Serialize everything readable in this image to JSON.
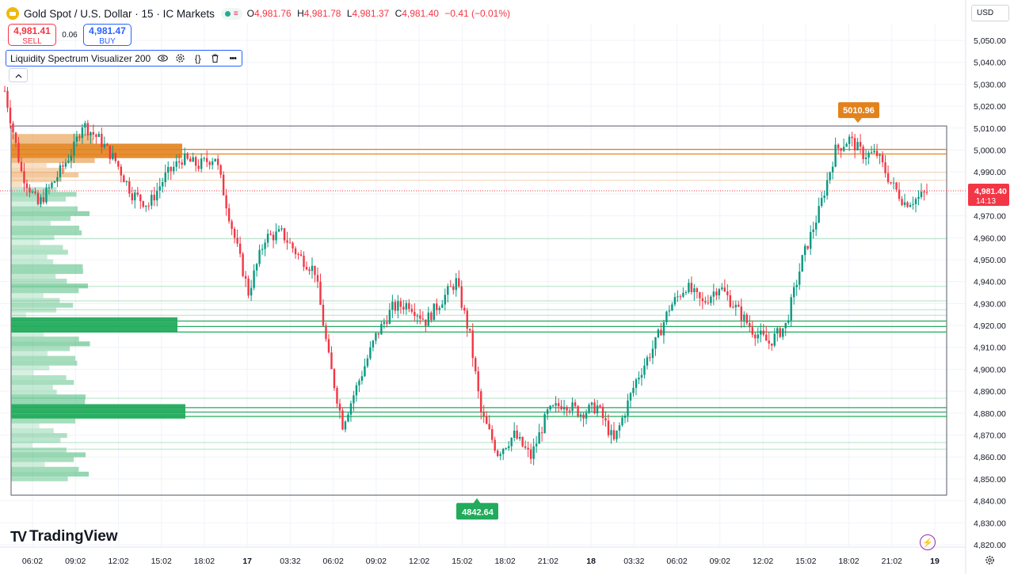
{
  "header": {
    "symbol": "Gold Spot / U.S. Dollar · 15 · IC Markets",
    "o_label": "O",
    "o": "4,981.76",
    "h_label": "H",
    "h": "4,981.78",
    "l_label": "L",
    "l": "4,981.37",
    "c_label": "C",
    "c": "4,981.40",
    "change": "−0.41 (−0.01%)"
  },
  "trade": {
    "sell_price": "4,981.41",
    "sell_label": "SELL",
    "spread": "0.06",
    "buy_price": "4,981.47",
    "buy_label": "BUY"
  },
  "indicator": {
    "name": "Liquidity Spectrum Visualizer",
    "param": "200"
  },
  "currency": "USD",
  "brand": "TradingView",
  "chart_data": {
    "type": "candlestick",
    "title": "",
    "y_ticks": [
      5050,
      5040,
      5030,
      5020,
      5010,
      5000,
      4990,
      4980,
      4970,
      4960,
      4950,
      4940,
      4930,
      4920,
      4910,
      4900,
      4890,
      4880,
      4870,
      4860,
      4850,
      4840,
      4830,
      4820
    ],
    "y_tick_labels": [
      "5,050.00",
      "5,040.00",
      "5,030.00",
      "5,020.00",
      "5,010.00",
      "5,000.00",
      "4,990.00",
      "4,980.00",
      "4,970.00",
      "4,960.00",
      "4,950.00",
      "4,940.00",
      "4,930.00",
      "4,920.00",
      "4,910.00",
      "4,900.00",
      "4,890.00",
      "4,880.00",
      "4,870.00",
      "4,860.00",
      "4,850.00",
      "4,840.00",
      "4,830.00",
      "4,820.00"
    ],
    "x_tick_labels": [
      "06:02",
      "09:02",
      "12:02",
      "15:02",
      "18:02",
      "17",
      "03:32",
      "06:02",
      "09:02",
      "12:02",
      "15:02",
      "18:02",
      "21:02",
      "18",
      "03:32",
      "06:02",
      "09:02",
      "12:02",
      "15:02",
      "18:02",
      "21:02",
      "19"
    ],
    "ylim": [
      4815,
      5055
    ],
    "last_price": "4,981.40",
    "countdown": "14:13",
    "high_marker": "5010.96",
    "low_marker": "4842.64",
    "range_box": [
      4842.64,
      5010.96
    ],
    "resistance_levels": [
      5000.3,
      4998.2
    ],
    "support_levels": [
      4922.0,
      4919.5,
      4917.0,
      4882.5,
      4880.5,
      4878.5
    ],
    "colors": {
      "up": "#089981",
      "down": "#f23645",
      "resist": "#e2821c",
      "support": "#22ab5c"
    },
    "path_anchors": [
      [
        0,
        5027
      ],
      [
        6,
        4990
      ],
      [
        12,
        4975
      ],
      [
        18,
        4986
      ],
      [
        25,
        5001
      ],
      [
        28,
        5012
      ],
      [
        34,
        5005
      ],
      [
        40,
        4995
      ],
      [
        46,
        4980
      ],
      [
        52,
        4975
      ],
      [
        58,
        4988
      ],
      [
        64,
        4996
      ],
      [
        70,
        4993
      ],
      [
        76,
        4997
      ],
      [
        82,
        4965
      ],
      [
        88,
        4935
      ],
      [
        94,
        4960
      ],
      [
        100,
        4962
      ],
      [
        106,
        4952
      ],
      [
        112,
        4945
      ],
      [
        117,
        4905
      ],
      [
        122,
        4875
      ],
      [
        128,
        4895
      ],
      [
        134,
        4915
      ],
      [
        140,
        4928
      ],
      [
        146,
        4930
      ],
      [
        152,
        4922
      ],
      [
        158,
        4932
      ],
      [
        163,
        4940
      ],
      [
        168,
        4915
      ],
      [
        172,
        4880
      ],
      [
        178,
        4862
      ],
      [
        184,
        4870
      ],
      [
        190,
        4860
      ],
      [
        196,
        4880
      ],
      [
        202,
        4885
      ],
      [
        208,
        4880
      ],
      [
        214,
        4883
      ],
      [
        220,
        4867
      ],
      [
        228,
        4895
      ],
      [
        235,
        4912
      ],
      [
        240,
        4928
      ],
      [
        246,
        4938
      ],
      [
        252,
        4930
      ],
      [
        258,
        4938
      ],
      [
        264,
        4928
      ],
      [
        270,
        4918
      ],
      [
        276,
        4912
      ],
      [
        282,
        4920
      ],
      [
        288,
        4950
      ],
      [
        294,
        4972
      ],
      [
        300,
        5000
      ],
      [
        305,
        5005
      ],
      [
        310,
        4998
      ],
      [
        315,
        4998
      ],
      [
        320,
        4985
      ],
      [
        325,
        4976
      ],
      [
        330,
        4978
      ],
      [
        333,
        4981
      ]
    ]
  }
}
